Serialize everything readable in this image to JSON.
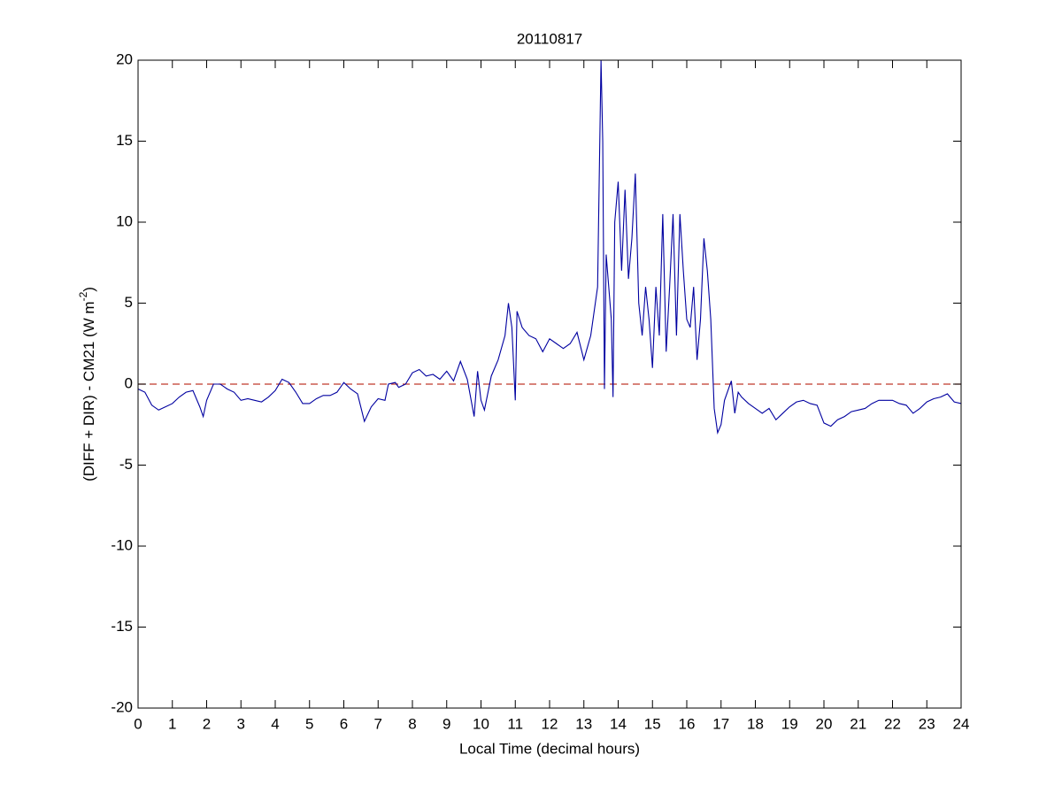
{
  "chart_data": {
    "type": "line",
    "title": "20110817",
    "xlabel": "Local Time (decimal hours)",
    "ylabel": {
      "text": "(DIFF + DIR) - CM21 (W m",
      "superscript": "-2",
      "suffix": ")"
    },
    "xlim": [
      0,
      24
    ],
    "ylim": [
      -20,
      20
    ],
    "xticks": [
      0,
      1,
      2,
      3,
      4,
      5,
      6,
      7,
      8,
      9,
      10,
      11,
      12,
      13,
      14,
      15,
      16,
      17,
      18,
      19,
      20,
      21,
      22,
      23,
      24
    ],
    "yticks": [
      -20,
      -15,
      -10,
      -5,
      0,
      5,
      10,
      15,
      20
    ],
    "grid": false,
    "reference_lines": [
      {
        "value": 0,
        "color": "#c0392b",
        "style": "dashed"
      }
    ],
    "x": [
      0,
      0.2,
      0.4,
      0.6,
      0.8,
      1.0,
      1.2,
      1.4,
      1.6,
      1.8,
      1.9,
      2.0,
      2.2,
      2.4,
      2.6,
      2.8,
      3.0,
      3.2,
      3.4,
      3.6,
      3.8,
      4.0,
      4.2,
      4.4,
      4.6,
      4.8,
      5.0,
      5.2,
      5.4,
      5.6,
      5.8,
      6.0,
      6.2,
      6.4,
      6.6,
      6.8,
      7.0,
      7.2,
      7.3,
      7.5,
      7.6,
      7.8,
      8.0,
      8.2,
      8.4,
      8.6,
      8.8,
      9.0,
      9.2,
      9.4,
      9.6,
      9.8,
      9.9,
      10.0,
      10.1,
      10.3,
      10.5,
      10.7,
      10.8,
      10.9,
      11.0,
      11.05,
      11.2,
      11.4,
      11.6,
      11.8,
      12.0,
      12.2,
      12.4,
      12.6,
      12.8,
      13.0,
      13.2,
      13.4,
      13.5,
      13.55,
      13.6,
      13.65,
      13.8,
      13.85,
      13.9,
      14.0,
      14.1,
      14.2,
      14.3,
      14.4,
      14.5,
      14.6,
      14.7,
      14.8,
      14.9,
      15.0,
      15.1,
      15.2,
      15.3,
      15.4,
      15.5,
      15.6,
      15.7,
      15.8,
      15.9,
      16.0,
      16.1,
      16.2,
      16.3,
      16.4,
      16.5,
      16.6,
      16.7,
      16.8,
      16.9,
      17.0,
      17.1,
      17.3,
      17.4,
      17.5,
      17.6,
      17.8,
      18.0,
      18.2,
      18.4,
      18.6,
      18.8,
      19.0,
      19.2,
      19.4,
      19.6,
      19.8,
      20.0,
      20.2,
      20.4,
      20.6,
      20.8,
      21.0,
      21.2,
      21.4,
      21.6,
      21.8,
      22.0,
      22.2,
      22.4,
      22.6,
      22.8,
      23.0,
      23.2,
      23.4,
      23.6,
      23.8,
      24.0
    ],
    "series": [
      {
        "color": "#0000a0",
        "values": [
          -0.3,
          -0.5,
          -1.3,
          -1.6,
          -1.4,
          -1.2,
          -0.8,
          -0.5,
          -0.4,
          -1.4,
          -2.0,
          -1.0,
          0.0,
          0.0,
          -0.3,
          -0.5,
          -1.0,
          -0.9,
          -1.0,
          -1.1,
          -0.8,
          -0.4,
          0.3,
          0.1,
          -0.5,
          -1.2,
          -1.2,
          -0.9,
          -0.7,
          -0.7,
          -0.5,
          0.1,
          -0.3,
          -0.6,
          -2.3,
          -1.4,
          -0.9,
          -1.0,
          0.0,
          0.1,
          -0.2,
          0.0,
          0.7,
          0.9,
          0.5,
          0.6,
          0.3,
          0.8,
          0.2,
          1.4,
          0.3,
          -2.0,
          0.8,
          -1.0,
          -1.6,
          0.5,
          1.5,
          3.0,
          5.0,
          3.5,
          -1.0,
          4.5,
          3.5,
          3.0,
          2.8,
          2.0,
          2.8,
          2.5,
          2.2,
          2.5,
          3.2,
          1.5,
          3.0,
          6.0,
          20,
          15,
          -0.3,
          8,
          4,
          -0.8,
          10,
          12.5,
          7,
          12,
          6.5,
          9,
          13,
          5,
          3,
          6,
          4,
          1,
          6,
          3,
          10.5,
          2,
          6,
          10.5,
          3,
          10.5,
          7,
          4,
          3.5,
          6,
          1.5,
          4,
          9,
          7,
          4,
          -1.5,
          -3,
          -2.5,
          -1,
          0.2,
          -1.8,
          -0.5,
          -0.8,
          -1.2,
          -1.5,
          -1.8,
          -1.5,
          -2.2,
          -1.8,
          -1.4,
          -1.1,
          -1.0,
          -1.2,
          -1.3,
          -2.4,
          -2.6,
          -2.2,
          -2.0,
          -1.7,
          -1.6,
          -1.5,
          -1.2,
          -1.0,
          -1.0,
          -1.0,
          -1.2,
          -1.3,
          -1.8,
          -1.5,
          -1.1,
          -0.9,
          -0.8,
          -0.6,
          -1.1,
          -1.2
        ]
      }
    ]
  }
}
